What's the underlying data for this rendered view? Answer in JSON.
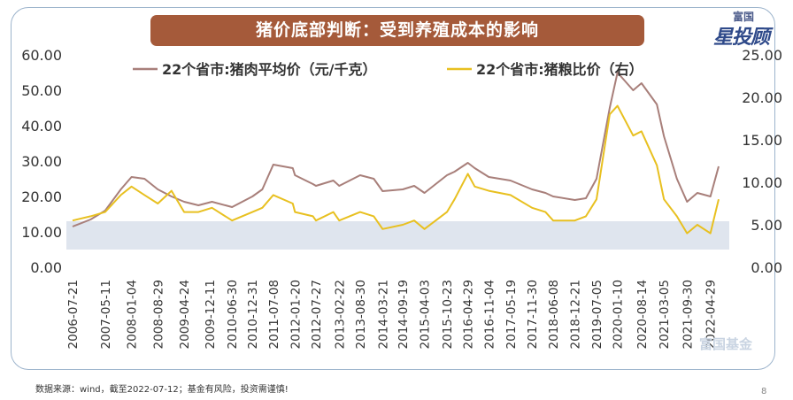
{
  "title": "猪价底部判断：受到养殖成本的影响",
  "logo": {
    "top": "富国",
    "main": "星投顾"
  },
  "watermark": "富国基金",
  "source": "数据来源：wind，截至2022-07-12；基金有风险，投资需谨慎!",
  "page_number": "8",
  "chart_data": {
    "type": "line",
    "title": "猪价底部判断：受到养殖成本的影响",
    "x": [
      "2006-07-21",
      "2006-12-31",
      "2007-05-11",
      "2007-09-30",
      "2008-01-04",
      "2008-05-01",
      "2008-08-29",
      "2008-12-31",
      "2009-04-24",
      "2009-08-31",
      "2009-12-31",
      "2010-06-30",
      "2010-12-31",
      "2011-03-31",
      "2011-07-08",
      "2011-12-31",
      "2012-01-20",
      "2012-06-30",
      "2012-07-27",
      "2012-12-31",
      "2013-02-22",
      "2013-08-30",
      "2013-12-31",
      "2014-03-21",
      "2014-09-19",
      "2014-12-31",
      "2015-04-03",
      "2015-10-23",
      "2015-12-31",
      "2016-04-29",
      "2016-06-30",
      "2016-11-04",
      "2017-05-19",
      "2017-11-30",
      "2018-03-31",
      "2018-06-08",
      "2018-12-21",
      "2019-03-31",
      "2019-07-05",
      "2019-11-01",
      "2020-01-10",
      "2020-05-31",
      "2020-08-14",
      "2020-12-31",
      "2021-03-05",
      "2021-06-30",
      "2021-09-30",
      "2021-12-31",
      "2022-04-29",
      "2022-07-12"
    ],
    "x_ticks": [
      "2006-07-21",
      "2007-05-11",
      "2008-01-04",
      "2008-08-29",
      "2009-04-24",
      "2009-12-11",
      "2010-06-30",
      "2010-12-31",
      "2011-07-08",
      "2012-01-20",
      "2012-07-27",
      "2013-02-22",
      "2013-08-30",
      "2014-03-21",
      "2014-09-19",
      "2015-04-03",
      "2015-10-23",
      "2016-04-29",
      "2016-11-04",
      "2017-05-19",
      "2017-11-30",
      "2018-06-08",
      "2018-12-21",
      "2019-07-05",
      "2020-01-10",
      "2020-08-14",
      "2021-03-05",
      "2021-09-30",
      "2022-04-29"
    ],
    "series": [
      {
        "name": "22个省市:猪肉平均价（元/千克）",
        "axis": "left",
        "color": "#a87f7a",
        "values": [
          11.5,
          13.5,
          16,
          22,
          25.5,
          25,
          22,
          20,
          18.5,
          17.5,
          18.5,
          17,
          20,
          22,
          29,
          28,
          26,
          23.5,
          23,
          24.5,
          23,
          26,
          25,
          21.5,
          22,
          23,
          21,
          26,
          27,
          29.5,
          28,
          25.5,
          24.5,
          22,
          21,
          20,
          19,
          19.5,
          25,
          45,
          55,
          50,
          52,
          46,
          37,
          25,
          18.5,
          21,
          20,
          28.5
        ]
      },
      {
        "name": "22个省市:猪粮比价（右）",
        "axis": "right",
        "color": "#e8c020",
        "values": [
          5.5,
          6,
          6.5,
          8.5,
          9.5,
          8.5,
          7.5,
          9,
          6.5,
          6.5,
          7,
          5.5,
          6.5,
          7,
          8.5,
          7.5,
          6.5,
          6,
          5.5,
          6.5,
          5.5,
          6.5,
          6,
          4.5,
          5,
          5.5,
          4.5,
          6.5,
          8,
          11,
          9.5,
          9,
          8.5,
          7,
          6.5,
          5.5,
          5.5,
          6,
          8,
          18,
          19,
          15.5,
          16,
          12,
          8,
          6,
          4,
          5,
          4,
          8
        ]
      }
    ],
    "y_left": {
      "ticks": [
        "0.00",
        "10.00",
        "20.00",
        "30.00",
        "40.00",
        "50.00",
        "60.00"
      ],
      "range": [
        0,
        60
      ]
    },
    "y_right": {
      "ticks": [
        "0.00",
        "5.00",
        "10.00",
        "15.00",
        "20.00",
        "25.00"
      ],
      "range": [
        0,
        25
      ]
    },
    "highlight_band_left_units": [
      5,
      13
    ],
    "legend_placement": "top",
    "grid": false
  }
}
